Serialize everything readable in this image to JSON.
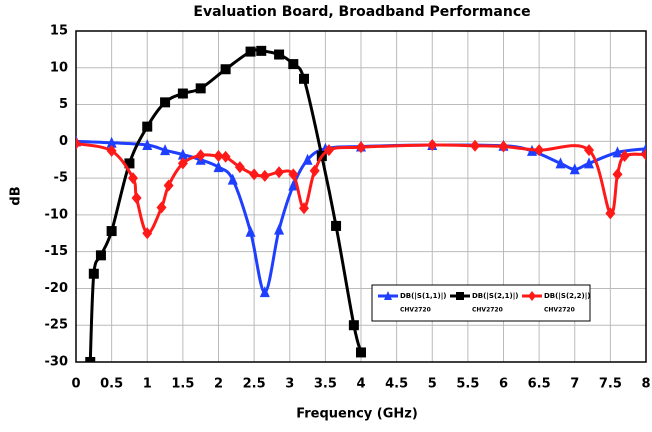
{
  "chart_data": {
    "type": "line",
    "title": "Evaluation Board, Broadband Performance",
    "xlabel": "Frequency (GHz)",
    "ylabel": "dB",
    "xlim": [
      0,
      8
    ],
    "xticks": [
      0,
      0.5,
      1,
      1.5,
      2,
      2.5,
      3,
      3.5,
      4,
      4.5,
      5,
      5.5,
      6,
      6.5,
      7,
      7.5,
      8
    ],
    "ylim": [
      -30,
      15
    ],
    "yticks": [
      15,
      10,
      5,
      0,
      -5,
      -10,
      -15,
      -20,
      -25,
      -30
    ],
    "grid": true,
    "series": [
      {
        "name": "DB(|S(1,1)|)",
        "note": "CHV2720",
        "color": "#1f3fff",
        "marker": "triangle",
        "x": [
          0,
          0.5,
          1,
          1.25,
          1.5,
          1.75,
          2,
          2.2,
          2.45,
          2.65,
          2.85,
          3.05,
          3.25,
          3.5,
          4,
          5,
          6,
          6.4,
          6.8,
          7,
          7.2,
          7.6,
          8
        ],
        "values": [
          0,
          -0.2,
          -0.5,
          -1.2,
          -1.8,
          -2.5,
          -3.5,
          -5.2,
          -12.3,
          -20.5,
          -12,
          -6,
          -2.5,
          -1,
          -0.7,
          -0.5,
          -0.6,
          -1.3,
          -3,
          -3.8,
          -3,
          -1.5,
          -1
        ]
      },
      {
        "name": "DB(|S(2,1)|)",
        "note": "CHV2720",
        "color": "#000000",
        "marker": "square",
        "x": [
          0.2,
          0.25,
          0.35,
          0.5,
          0.75,
          1,
          1.25,
          1.5,
          1.75,
          2.1,
          2.45,
          2.6,
          2.85,
          3.05,
          3.2,
          3.45,
          3.65,
          3.9,
          4.0
        ],
        "values": [
          -30,
          -18,
          -15.5,
          -12.2,
          -3,
          2,
          5.3,
          6.5,
          7.2,
          9.8,
          12.2,
          12.3,
          11.8,
          10.5,
          8.5,
          -2,
          -11.5,
          -25,
          -28.7
        ]
      },
      {
        "name": "DB(|S(2,2)|)",
        "note": "CHV2720",
        "color": "#ff1a1a",
        "marker": "diamond",
        "x": [
          0,
          0.5,
          0.8,
          0.85,
          1,
          1.2,
          1.3,
          1.5,
          1.75,
          2,
          2.1,
          2.3,
          2.5,
          2.65,
          2.85,
          3.05,
          3.2,
          3.35,
          3.55,
          4,
          5,
          5.6,
          6,
          6.5,
          7.2,
          7.5,
          7.6,
          7.7,
          8
        ],
        "values": [
          -0.3,
          -1.3,
          -5,
          -7.7,
          -12.5,
          -9,
          -6,
          -3,
          -1.9,
          -2,
          -2.1,
          -3.5,
          -4.5,
          -4.7,
          -4.2,
          -4.5,
          -9.1,
          -4,
          -1.2,
          -0.8,
          -0.5,
          -0.6,
          -0.7,
          -1.2,
          -1.2,
          -9.8,
          -4.5,
          -2,
          -1.8
        ]
      }
    ]
  }
}
